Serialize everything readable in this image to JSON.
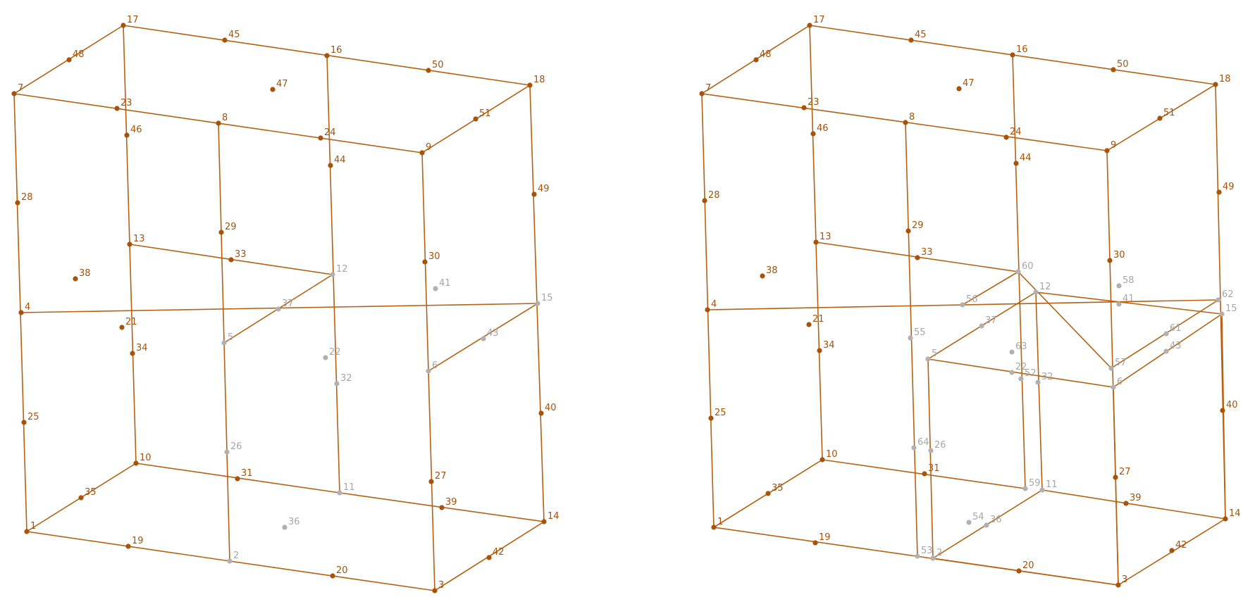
{
  "diagrams": [
    {
      "id": "left",
      "edges": [
        [
          "1",
          "2"
        ],
        [
          "2",
          "3"
        ],
        [
          "3",
          "14"
        ],
        [
          "14",
          "11"
        ],
        [
          "11",
          "10"
        ],
        [
          "10",
          "1"
        ],
        [
          "1",
          "7"
        ],
        [
          "7",
          "17"
        ],
        [
          "17",
          "18"
        ],
        [
          "18",
          "14"
        ],
        [
          "18",
          "9"
        ],
        [
          "9",
          "3"
        ],
        [
          "9",
          "7"
        ],
        [
          "16",
          "11"
        ],
        [
          "8",
          "2"
        ],
        [
          "17",
          "10"
        ],
        [
          "4",
          "15"
        ],
        [
          "13",
          "12"
        ],
        [
          "12",
          "5"
        ],
        [
          "15",
          "6"
        ]
      ],
      "points": [
        {
          "id": "1",
          "label": "1",
          "hidden": false
        },
        {
          "id": "2",
          "label": "2",
          "hidden": true
        },
        {
          "id": "3",
          "label": "3",
          "hidden": false
        },
        {
          "id": "4",
          "label": "4",
          "hidden": false
        },
        {
          "id": "5",
          "label": "5",
          "hidden": true
        },
        {
          "id": "6",
          "label": "6",
          "hidden": true
        },
        {
          "id": "7",
          "label": "7",
          "hidden": false
        },
        {
          "id": "8",
          "label": "8",
          "hidden": false
        },
        {
          "id": "9",
          "label": "9",
          "hidden": false
        },
        {
          "id": "10",
          "label": "10",
          "hidden": false
        },
        {
          "id": "11",
          "label": "11",
          "hidden": true
        },
        {
          "id": "12",
          "label": "12",
          "hidden": true
        },
        {
          "id": "13",
          "label": "13",
          "hidden": false
        },
        {
          "id": "14",
          "label": "14",
          "hidden": false
        },
        {
          "id": "15",
          "label": "15",
          "hidden": true
        },
        {
          "id": "16",
          "label": "16",
          "hidden": false
        },
        {
          "id": "17",
          "label": "17",
          "hidden": false
        },
        {
          "id": "18",
          "label": "18",
          "hidden": false
        },
        {
          "id": "19",
          "label": "19",
          "hidden": false
        },
        {
          "id": "20",
          "label": "20",
          "hidden": false
        },
        {
          "id": "21",
          "label": "21",
          "hidden": false
        },
        {
          "id": "22",
          "label": "22",
          "hidden": true
        },
        {
          "id": "23",
          "label": "23",
          "hidden": false
        },
        {
          "id": "24",
          "label": "24",
          "hidden": false
        },
        {
          "id": "25",
          "label": "25",
          "hidden": false
        },
        {
          "id": "26",
          "label": "26",
          "hidden": true
        },
        {
          "id": "27",
          "label": "27",
          "hidden": false
        },
        {
          "id": "28",
          "label": "28",
          "hidden": false
        },
        {
          "id": "29",
          "label": "29",
          "hidden": false
        },
        {
          "id": "30",
          "label": "30",
          "hidden": false
        },
        {
          "id": "31",
          "label": "31",
          "hidden": false
        },
        {
          "id": "32",
          "label": "32",
          "hidden": true
        },
        {
          "id": "33",
          "label": "33",
          "hidden": false
        },
        {
          "id": "34",
          "label": "34",
          "hidden": false
        },
        {
          "id": "35",
          "label": "35",
          "hidden": false
        },
        {
          "id": "36",
          "label": "36",
          "hidden": true
        },
        {
          "id": "37",
          "label": "37",
          "hidden": true
        },
        {
          "id": "38",
          "label": "38",
          "hidden": false
        },
        {
          "id": "39",
          "label": "39",
          "hidden": false
        },
        {
          "id": "40",
          "label": "40",
          "hidden": false
        },
        {
          "id": "41",
          "label": "41",
          "hidden": true
        },
        {
          "id": "42",
          "label": "42",
          "hidden": false
        },
        {
          "id": "43",
          "label": "43",
          "hidden": true
        },
        {
          "id": "44",
          "label": "44",
          "hidden": false
        },
        {
          "id": "45",
          "label": "45",
          "hidden": false
        },
        {
          "id": "46",
          "label": "46",
          "hidden": false
        },
        {
          "id": "47",
          "label": "47",
          "hidden": false
        },
        {
          "id": "48",
          "label": "48",
          "hidden": false
        },
        {
          "id": "49",
          "label": "49",
          "hidden": false
        },
        {
          "id": "50",
          "label": "50",
          "hidden": false
        },
        {
          "id": "51",
          "label": "51",
          "hidden": false
        }
      ]
    },
    {
      "id": "right",
      "edges": [
        [
          "1",
          "3"
        ],
        [
          "3",
          "14"
        ],
        [
          "14",
          "18"
        ],
        [
          "18",
          "17"
        ],
        [
          "17",
          "7"
        ],
        [
          "7",
          "1"
        ],
        [
          "7",
          "9"
        ],
        [
          "9",
          "18"
        ],
        [
          "1",
          "10"
        ],
        [
          "10",
          "17"
        ],
        [
          "16",
          "59"
        ],
        [
          "8",
          "53"
        ],
        [
          "4",
          "62"
        ],
        [
          "13",
          "60"
        ],
        [
          "60",
          "57"
        ],
        [
          "57",
          "62"
        ],
        [
          "56",
          "60"
        ],
        [
          "5",
          "12"
        ],
        [
          "12",
          "15"
        ],
        [
          "15",
          "6"
        ],
        [
          "6",
          "5"
        ],
        [
          "5",
          "2"
        ],
        [
          "2",
          "3"
        ],
        [
          "6",
          "3"
        ],
        [
          "15",
          "14"
        ],
        [
          "2",
          "11"
        ],
        [
          "11",
          "14"
        ],
        [
          "12",
          "11"
        ],
        [
          "10",
          "59"
        ],
        [
          "3",
          "9"
        ]
      ],
      "points": [
        {
          "id": "1",
          "label": "1",
          "hidden": false
        },
        {
          "id": "2",
          "label": "2",
          "hidden": true
        },
        {
          "id": "3",
          "label": "3",
          "hidden": false
        },
        {
          "id": "4",
          "label": "4",
          "hidden": false
        },
        {
          "id": "5",
          "label": "5",
          "hidden": true
        },
        {
          "id": "6",
          "label": "6",
          "hidden": true
        },
        {
          "id": "7",
          "label": "7",
          "hidden": false
        },
        {
          "id": "8",
          "label": "8",
          "hidden": false
        },
        {
          "id": "9",
          "label": "9",
          "hidden": false
        },
        {
          "id": "10",
          "label": "10",
          "hidden": false
        },
        {
          "id": "11",
          "label": "11",
          "hidden": true
        },
        {
          "id": "12",
          "label": "12",
          "hidden": true
        },
        {
          "id": "13",
          "label": "13",
          "hidden": false
        },
        {
          "id": "14",
          "label": "14",
          "hidden": false
        },
        {
          "id": "15",
          "label": "15",
          "hidden": true
        },
        {
          "id": "16",
          "label": "16",
          "hidden": false
        },
        {
          "id": "17",
          "label": "17",
          "hidden": false
        },
        {
          "id": "18",
          "label": "18",
          "hidden": false
        },
        {
          "id": "19",
          "label": "19",
          "hidden": false
        },
        {
          "id": "20",
          "label": "20",
          "hidden": false
        },
        {
          "id": "21",
          "label": "21",
          "hidden": false
        },
        {
          "id": "22",
          "label": "22",
          "hidden": true
        },
        {
          "id": "23",
          "label": "23",
          "hidden": false
        },
        {
          "id": "24",
          "label": "24",
          "hidden": false
        },
        {
          "id": "25",
          "label": "25",
          "hidden": false
        },
        {
          "id": "26",
          "label": "26",
          "hidden": true
        },
        {
          "id": "27",
          "label": "27",
          "hidden": false
        },
        {
          "id": "28",
          "label": "28",
          "hidden": false
        },
        {
          "id": "29",
          "label": "29",
          "hidden": false
        },
        {
          "id": "30",
          "label": "30",
          "hidden": false
        },
        {
          "id": "31",
          "label": "31",
          "hidden": false
        },
        {
          "id": "32",
          "label": "32",
          "hidden": true
        },
        {
          "id": "33",
          "label": "33",
          "hidden": false
        },
        {
          "id": "34",
          "label": "34",
          "hidden": false
        },
        {
          "id": "35",
          "label": "35",
          "hidden": false
        },
        {
          "id": "36",
          "label": "36",
          "hidden": true
        },
        {
          "id": "37",
          "label": "37",
          "hidden": true
        },
        {
          "id": "38",
          "label": "38",
          "hidden": false
        },
        {
          "id": "39",
          "label": "39",
          "hidden": false
        },
        {
          "id": "40",
          "label": "40",
          "hidden": false
        },
        {
          "id": "41",
          "label": "41",
          "hidden": true
        },
        {
          "id": "42",
          "label": "42",
          "hidden": false
        },
        {
          "id": "43",
          "label": "43",
          "hidden": true
        },
        {
          "id": "44",
          "label": "44",
          "hidden": false
        },
        {
          "id": "45",
          "label": "45",
          "hidden": false
        },
        {
          "id": "46",
          "label": "46",
          "hidden": false
        },
        {
          "id": "47",
          "label": "47",
          "hidden": false
        },
        {
          "id": "48",
          "label": "48",
          "hidden": false
        },
        {
          "id": "49",
          "label": "49",
          "hidden": false
        },
        {
          "id": "50",
          "label": "50",
          "hidden": false
        },
        {
          "id": "51",
          "label": "51",
          "hidden": false
        },
        {
          "id": "52",
          "label": "52",
          "hidden": true
        },
        {
          "id": "53",
          "label": "53",
          "hidden": true
        },
        {
          "id": "54",
          "label": "54",
          "hidden": true
        },
        {
          "id": "55",
          "label": "55",
          "hidden": true
        },
        {
          "id": "56",
          "label": "56",
          "hidden": true
        },
        {
          "id": "57",
          "label": "57",
          "hidden": true
        },
        {
          "id": "58",
          "label": "58",
          "hidden": true
        },
        {
          "id": "59",
          "label": "59",
          "hidden": true
        },
        {
          "id": "60",
          "label": "60",
          "hidden": true
        },
        {
          "id": "61",
          "label": "61",
          "hidden": true
        },
        {
          "id": "62",
          "label": "62",
          "hidden": true
        },
        {
          "id": "63",
          "label": "63",
          "hidden": true
        },
        {
          "id": "64",
          "label": "64",
          "hidden": true
        }
      ]
    }
  ],
  "colors": {
    "visible": "#a8520a",
    "edge": "#b8600f",
    "hidden": "#b3b0b0"
  }
}
